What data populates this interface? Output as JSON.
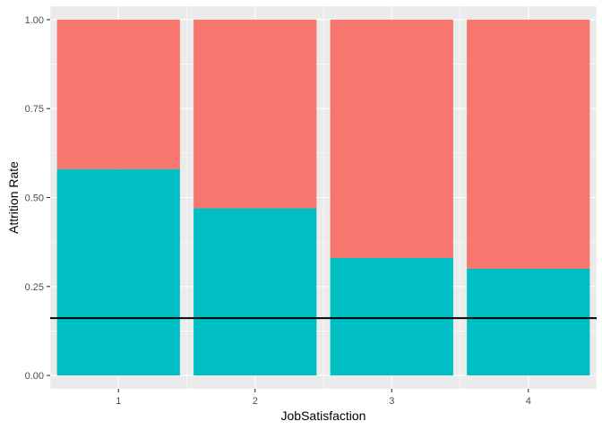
{
  "chart_data": {
    "type": "bar",
    "stacked": true,
    "categories": [
      "1",
      "2",
      "3",
      "4"
    ],
    "series": [
      {
        "values": [
          0.58,
          0.47,
          0.33,
          0.3
        ],
        "color": "#00BFC4"
      },
      {
        "values": [
          0.42,
          0.53,
          0.67,
          0.7
        ],
        "color": "#F8766D"
      }
    ],
    "xlabel": "JobSatisfaction",
    "ylabel": "Attrition Rate",
    "ylim": [
      -0.0375,
      1.0375
    ],
    "yticks": [
      0.0,
      0.25,
      0.5,
      0.75,
      1.0
    ],
    "ytick_labels": [
      "0.00",
      "0.25",
      "0.50",
      "0.75",
      "1.00"
    ],
    "hline": {
      "y": 0.161,
      "color": "#000000"
    },
    "grid": true,
    "panel_background": "#EBEBEB",
    "grid_color": "#FFFFFF"
  }
}
